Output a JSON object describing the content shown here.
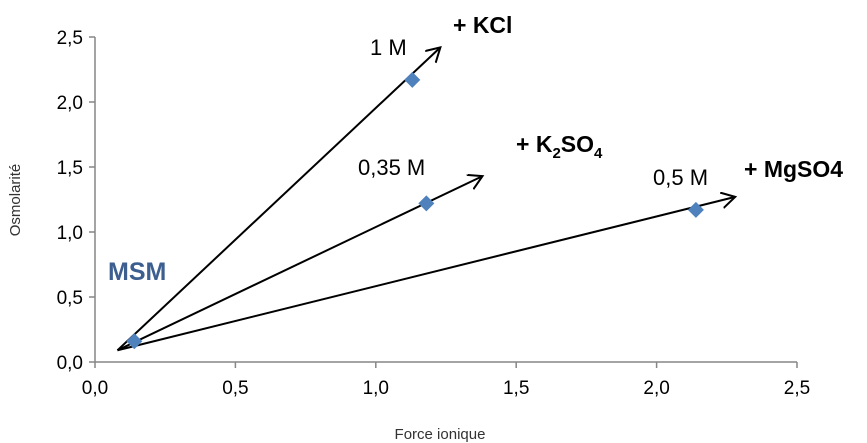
{
  "chart_data": {
    "type": "scatter",
    "xlabel": "Force ionique",
    "ylabel": "Osmolarité",
    "xlim": [
      0,
      2.5
    ],
    "ylim": [
      0,
      2.5
    ],
    "x_ticks": [
      "0,0",
      "0,5",
      "1,0",
      "1,5",
      "2,0",
      "2,5"
    ],
    "y_ticks": [
      "0,0",
      "0,5",
      "1,0",
      "1,5",
      "2,0",
      "2,5"
    ],
    "grid": false,
    "marker_color": "#4f81bd",
    "points": [
      {
        "x": 0.14,
        "y": 0.16
      },
      {
        "x": 1.13,
        "y": 2.17
      },
      {
        "x": 1.18,
        "y": 1.22
      },
      {
        "x": 2.14,
        "y": 1.17
      }
    ],
    "arrows": [
      {
        "from": [
          0.08,
          0.09
        ],
        "to": [
          1.23,
          2.42
        ]
      },
      {
        "from": [
          0.08,
          0.09
        ],
        "to": [
          1.38,
          1.43
        ]
      },
      {
        "from": [
          0.08,
          0.09
        ],
        "to": [
          2.28,
          1.27
        ]
      }
    ],
    "annotations": {
      "msm": "MSM",
      "kcl_conc": "1 M",
      "kcl_salt": "+ KCl",
      "k2so4_conc": "0,35 M",
      "k2so4_salt_parts": [
        "+ K",
        "2",
        "SO",
        "4"
      ],
      "mgso4_conc": "0,5 M",
      "mgso4_salt": "+ MgSO4"
    },
    "msm_color": "#3d5f8f"
  }
}
